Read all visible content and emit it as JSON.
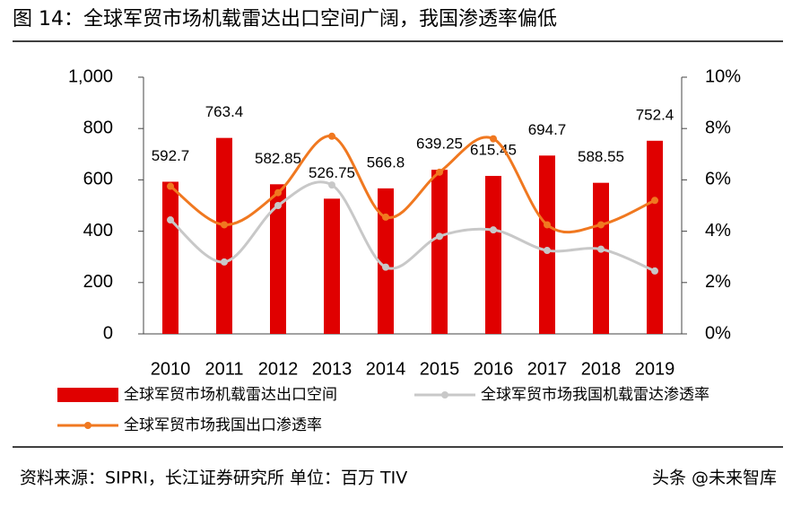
{
  "chart_data": {
    "type": "bar-line",
    "title": "图 14：全球军贸市场机载雷达出口空间广阔，我国渗透率偏低",
    "source": "资料来源：SIPRI，长江证券研究所  单位：百万 TIV",
    "watermark": "头条 @未来智库",
    "categories": [
      "2010",
      "2011",
      "2012",
      "2013",
      "2014",
      "2015",
      "2016",
      "2017",
      "2018",
      "2019"
    ],
    "ylim": [
      0,
      1000
    ],
    "yticks": [
      0,
      200,
      400,
      600,
      800,
      {
        "value": 1000,
        "label": "1,000"
      }
    ],
    "y2lim": [
      0,
      10
    ],
    "y2ticks": [
      {
        "value": 0,
        "label": "0%"
      },
      {
        "value": 2,
        "label": "2%"
      },
      {
        "value": 4,
        "label": "4%"
      },
      {
        "value": 6,
        "label": "6%"
      },
      {
        "value": 8,
        "label": "8%"
      },
      {
        "value": 10,
        "label": "10%"
      }
    ],
    "series": [
      {
        "name": "全球军贸市场机载雷达出口空间",
        "type": "bar",
        "color": "#e00000",
        "values": [
          592.7,
          763.4,
          582.85,
          526.75,
          566.8,
          639.25,
          615.45,
          694.7,
          588.55,
          752.4
        ]
      },
      {
        "name": "全球军贸市场我国机载雷达渗透率",
        "type": "line",
        "axis": "y2",
        "color": "#c8c8c8",
        "values": [
          4.44,
          2.8,
          5.0,
          5.8,
          2.6,
          3.8,
          4.05,
          3.25,
          3.3,
          2.45
        ]
      },
      {
        "name": "全球军贸市场我国出口渗透率",
        "type": "line",
        "axis": "y2",
        "color": "#f07820",
        "values": [
          5.75,
          4.25,
          5.5,
          7.7,
          4.55,
          6.3,
          7.6,
          4.25,
          4.25,
          5.2
        ]
      }
    ]
  }
}
